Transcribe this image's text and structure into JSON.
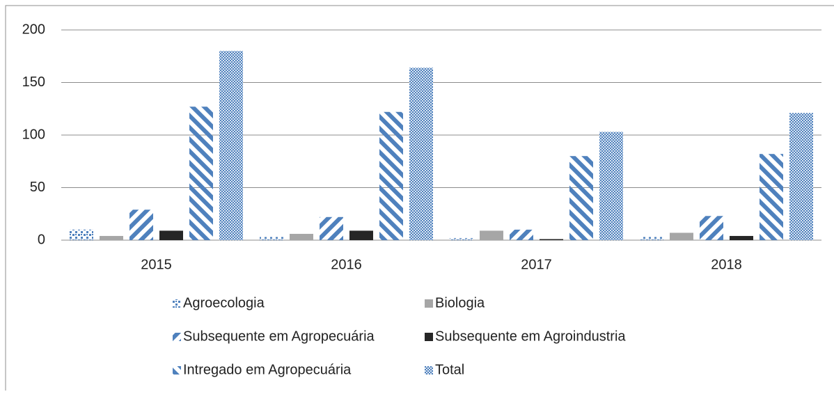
{
  "chart_data": {
    "type": "bar",
    "categories": [
      "2015",
      "2016",
      "2017",
      "2018"
    ],
    "series": [
      {
        "name": "Agroecologia",
        "color": "#4f81bd",
        "values": [
          10,
          3,
          2,
          3
        ]
      },
      {
        "name": "Biologia",
        "color": "#a6a6a6",
        "values": [
          4,
          6,
          9,
          7
        ]
      },
      {
        "name": "Subsequente em Agropecuária",
        "color": "#4f81bd",
        "values": [
          29,
          22,
          10,
          23
        ]
      },
      {
        "name": "Subsequente em Agroindustria",
        "color": "#262626",
        "values": [
          9,
          9,
          1,
          4
        ]
      },
      {
        "name": "Intregado em Agropecuária",
        "color": "#4f81bd",
        "values": [
          127,
          122,
          80,
          82
        ]
      },
      {
        "name": "Total",
        "color": "#4f81bd",
        "values": [
          180,
          164,
          103,
          121
        ]
      }
    ],
    "ylim": [
      0,
      200
    ],
    "yticks": [
      0,
      50,
      100,
      150,
      200
    ],
    "grid": true,
    "legend": "bottom"
  }
}
